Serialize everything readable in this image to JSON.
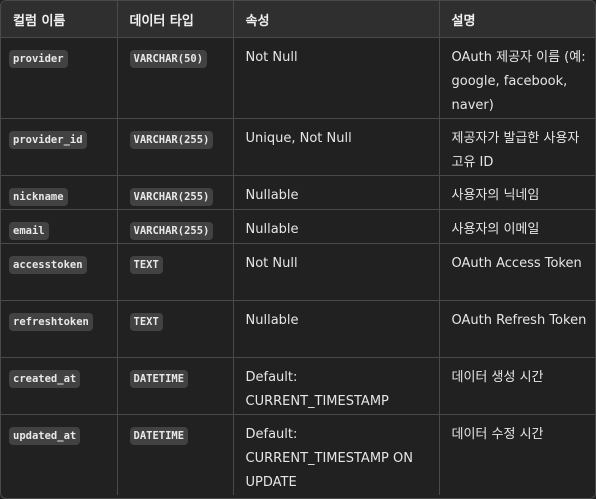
{
  "table": {
    "headers": [
      "컬럼 이름",
      "데이터 타입",
      "속성",
      "설명"
    ],
    "rows": [
      {
        "column": "provider",
        "type": "VARCHAR(50)",
        "attr": "Not Null",
        "desc": "OAuth 제공자 이름 (예: google, facebook, naver)"
      },
      {
        "column": "provider_id",
        "type": "VARCHAR(255)",
        "attr": "Unique, Not Null",
        "desc": "제공자가 발급한 사용자 고유 ID"
      },
      {
        "column": "nickname",
        "type": "VARCHAR(255)",
        "attr": "Nullable",
        "desc": "사용자의 닉네임"
      },
      {
        "column": "email",
        "type": "VARCHAR(255)",
        "attr": "Nullable",
        "desc": "사용자의 이메일"
      },
      {
        "column": "accesstoken",
        "type": "TEXT",
        "attr": "Not Null",
        "desc": "OAuth Access Token"
      },
      {
        "column": "refreshtoken",
        "type": "TEXT",
        "attr": "Nullable",
        "desc": "OAuth Refresh Token"
      },
      {
        "column": "created_at",
        "type": "DATETIME",
        "attr": "Default: CURRENT_TIMESTAMP",
        "desc": "데이터 생성 시간"
      },
      {
        "column": "updated_at",
        "type": "DATETIME",
        "attr": "Default: CURRENT_TIMESTAMP ON UPDATE",
        "desc": "데이터 수정 시간"
      }
    ]
  }
}
